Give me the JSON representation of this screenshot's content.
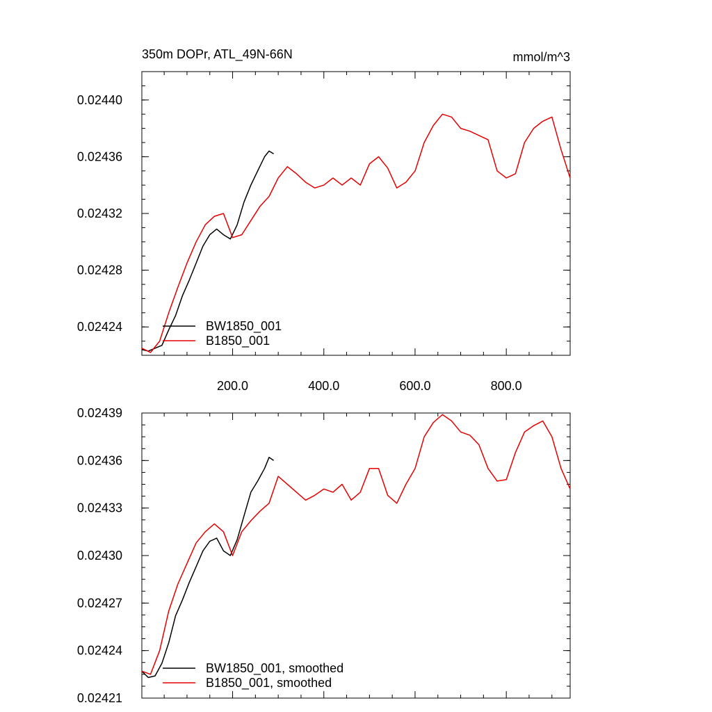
{
  "header": {
    "title_left": "350m DOPr, ATL_49N-66N",
    "title_right": "mmol/m^3"
  },
  "colors": {
    "bw1850": "#000000",
    "b1850": "#e60000",
    "axis": "#000000",
    "background": "#ffffff"
  },
  "chart_data": [
    {
      "type": "line",
      "title": "350m DOPr, ATL_49N-66N",
      "units": "mmol/m^3",
      "xlim": [
        1,
        940
      ],
      "ylim": [
        0.02422,
        0.02442
      ],
      "x_ticks": [
        200,
        400,
        600,
        800
      ],
      "x_tick_labels": [
        "200.0",
        "400.0",
        "600.0",
        "800.0"
      ],
      "y_ticks": [
        0.02424,
        0.02428,
        0.02432,
        0.02436,
        0.0244
      ],
      "y_tick_labels": [
        "0.02424",
        "0.02428",
        "0.02432",
        "0.02436",
        "0.02440"
      ],
      "legend_placement": "bottom-left",
      "grid": false,
      "series": [
        {
          "name": "BW1850_001",
          "color": "#000000",
          "x": [
            1,
            15,
            30,
            45,
            60,
            75,
            90,
            105,
            120,
            135,
            150,
            165,
            180,
            195,
            210,
            225,
            240,
            255,
            270,
            280,
            290
          ],
          "y": [
            0.024224,
            0.024223,
            0.024225,
            0.024227,
            0.024238,
            0.024248,
            0.024262,
            0.024273,
            0.024285,
            0.024297,
            0.024305,
            0.024309,
            0.024305,
            0.024302,
            0.024312,
            0.024328,
            0.02434,
            0.02435,
            0.02436,
            0.024364,
            0.024362
          ]
        },
        {
          "name": "B1850_001",
          "color": "#e60000",
          "x": [
            1,
            20,
            40,
            60,
            80,
            100,
            120,
            140,
            160,
            180,
            200,
            220,
            240,
            260,
            280,
            300,
            320,
            340,
            360,
            380,
            400,
            420,
            440,
            460,
            480,
            500,
            520,
            540,
            560,
            580,
            600,
            620,
            640,
            660,
            680,
            700,
            720,
            740,
            760,
            780,
            800,
            820,
            840,
            860,
            880,
            900,
            920,
            940
          ],
          "y": [
            0.024225,
            0.024222,
            0.02423,
            0.02425,
            0.024268,
            0.024285,
            0.0243,
            0.024312,
            0.024318,
            0.02432,
            0.024303,
            0.024305,
            0.024315,
            0.024325,
            0.024332,
            0.024345,
            0.024353,
            0.024348,
            0.024342,
            0.024338,
            0.02434,
            0.024345,
            0.02434,
            0.024345,
            0.02434,
            0.024355,
            0.02436,
            0.024352,
            0.024338,
            0.024342,
            0.02435,
            0.02437,
            0.024382,
            0.02439,
            0.024388,
            0.02438,
            0.024378,
            0.024375,
            0.024372,
            0.02435,
            0.024345,
            0.024348,
            0.02437,
            0.02438,
            0.024385,
            0.024388,
            0.024365,
            0.024345
          ]
        }
      ]
    },
    {
      "type": "line",
      "xlim": [
        1,
        940
      ],
      "ylim": [
        0.02421,
        0.02439
      ],
      "x_ticks": [
        200,
        400,
        600,
        800
      ],
      "y_ticks": [
        0.02421,
        0.02424,
        0.02427,
        0.0243,
        0.02433,
        0.02436,
        0.02439
      ],
      "y_tick_labels": [
        "0.02421",
        "0.02424",
        "0.02427",
        "0.02430",
        "0.02433",
        "0.02436",
        "0.02439"
      ],
      "legend_placement": "bottom-left",
      "grid": false,
      "series": [
        {
          "name": "BW1850_001, smoothed",
          "color": "#000000",
          "x": [
            1,
            15,
            30,
            45,
            60,
            75,
            90,
            105,
            120,
            135,
            150,
            165,
            180,
            195,
            210,
            225,
            240,
            255,
            270,
            280,
            290
          ],
          "y": [
            0.024227,
            0.024223,
            0.024224,
            0.024232,
            0.024245,
            0.024262,
            0.024272,
            0.024283,
            0.024293,
            0.024303,
            0.024309,
            0.024311,
            0.024303,
            0.0243,
            0.02431,
            0.024325,
            0.02434,
            0.024347,
            0.024355,
            0.024362,
            0.02436
          ]
        },
        {
          "name": "B1850_001, smoothed",
          "color": "#e60000",
          "x": [
            1,
            20,
            40,
            60,
            80,
            100,
            120,
            140,
            160,
            180,
            200,
            220,
            240,
            260,
            280,
            300,
            320,
            340,
            360,
            380,
            400,
            420,
            440,
            460,
            480,
            500,
            520,
            540,
            560,
            580,
            600,
            620,
            640,
            660,
            680,
            700,
            720,
            740,
            760,
            780,
            800,
            820,
            840,
            860,
            880,
            900,
            920,
            940
          ],
          "y": [
            0.024227,
            0.024225,
            0.02424,
            0.024265,
            0.024282,
            0.024295,
            0.024308,
            0.024315,
            0.02432,
            0.024315,
            0.0243,
            0.024315,
            0.024322,
            0.024328,
            0.024333,
            0.02435,
            0.024345,
            0.02434,
            0.024335,
            0.024338,
            0.024342,
            0.02434,
            0.024345,
            0.024335,
            0.02434,
            0.024355,
            0.024355,
            0.024338,
            0.024333,
            0.024345,
            0.024355,
            0.024375,
            0.024384,
            0.024389,
            0.024385,
            0.024378,
            0.024376,
            0.02437,
            0.024355,
            0.024347,
            0.024348,
            0.024365,
            0.024378,
            0.024382,
            0.024385,
            0.024375,
            0.024355,
            0.024342
          ]
        }
      ]
    }
  ]
}
